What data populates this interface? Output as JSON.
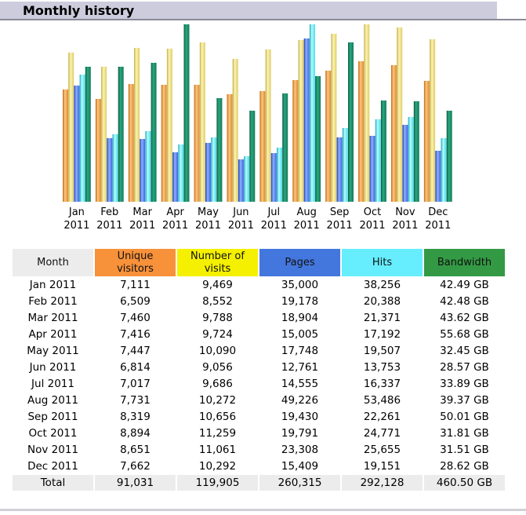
{
  "header": {
    "title": "Monthly history"
  },
  "colors": {
    "unique_visitors": "#f7913a",
    "visits": "#f4f000",
    "pages": "#4477dd",
    "hits": "#66eeff",
    "bandwidth": "#339944",
    "month_header": "#ececec",
    "total_row": "#ececec",
    "titlebar": "#ccccdd"
  },
  "chart_data": {
    "type": "bar",
    "title": "Monthly history",
    "categories": [
      "Jan 2011",
      "Feb 2011",
      "Mar 2011",
      "Apr 2011",
      "May 2011",
      "Jun 2011",
      "Jul 2011",
      "Aug 2011",
      "Sep 2011",
      "Oct 2011",
      "Nov 2011",
      "Dec 2011"
    ],
    "category_lines": [
      [
        "Jan",
        "2011"
      ],
      [
        "Feb",
        "2011"
      ],
      [
        "Mar",
        "2011"
      ],
      [
        "Apr",
        "2011"
      ],
      [
        "May",
        "2011"
      ],
      [
        "Jun",
        "2011"
      ],
      [
        "Jul",
        "2011"
      ],
      [
        "Aug",
        "2011"
      ],
      [
        "Sep",
        "2011"
      ],
      [
        "Oct",
        "2011"
      ],
      [
        "Nov",
        "2011"
      ],
      [
        "Dec",
        "2011"
      ]
    ],
    "series": [
      {
        "name": "Unique visitors",
        "values": [
          7111,
          6509,
          7460,
          7416,
          7447,
          6814,
          7017,
          7731,
          8319,
          8894,
          8651,
          7662
        ]
      },
      {
        "name": "Number of visits",
        "values": [
          9469,
          8552,
          9788,
          9724,
          10090,
          9056,
          9686,
          10272,
          10656,
          11259,
          11061,
          10292
        ]
      },
      {
        "name": "Pages",
        "values": [
          35000,
          19178,
          18904,
          15005,
          17748,
          12761,
          14555,
          49226,
          19430,
          19791,
          23308,
          15409
        ]
      },
      {
        "name": "Hits",
        "values": [
          38256,
          20388,
          21371,
          17192,
          19507,
          13753,
          16337,
          53486,
          22261,
          24771,
          25655,
          19151
        ]
      },
      {
        "name": "Bandwidth",
        "unit": "GB",
        "values": [
          42.49,
          42.48,
          43.62,
          55.68,
          32.45,
          28.57,
          33.89,
          39.37,
          50.01,
          31.81,
          31.51,
          28.62
        ]
      }
    ],
    "scaling": "visitors and visits share one scale, pages and hits share one scale, bandwidth has its own scale",
    "xlabel": "",
    "ylabel": "",
    "grid": false,
    "legend": "none"
  },
  "table": {
    "headers": [
      "Month",
      "Unique visitors",
      "Number of visits",
      "Pages",
      "Hits",
      "Bandwidth"
    ],
    "header_lines": [
      [
        "Month"
      ],
      [
        "Unique",
        "visitors"
      ],
      [
        "Number of",
        "visits"
      ],
      [
        "Pages"
      ],
      [
        "Hits"
      ],
      [
        "Bandwidth"
      ]
    ],
    "rows": [
      [
        "Jan 2011",
        "7,111",
        "9,469",
        "35,000",
        "38,256",
        "42.49 GB"
      ],
      [
        "Feb 2011",
        "6,509",
        "8,552",
        "19,178",
        "20,388",
        "42.48 GB"
      ],
      [
        "Mar 2011",
        "7,460",
        "9,788",
        "18,904",
        "21,371",
        "43.62 GB"
      ],
      [
        "Apr 2011",
        "7,416",
        "9,724",
        "15,005",
        "17,192",
        "55.68 GB"
      ],
      [
        "May 2011",
        "7,447",
        "10,090",
        "17,748",
        "19,507",
        "32.45 GB"
      ],
      [
        "Jun 2011",
        "6,814",
        "9,056",
        "12,761",
        "13,753",
        "28.57 GB"
      ],
      [
        "Jul 2011",
        "7,017",
        "9,686",
        "14,555",
        "16,337",
        "33.89 GB"
      ],
      [
        "Aug 2011",
        "7,731",
        "10,272",
        "49,226",
        "53,486",
        "39.37 GB"
      ],
      [
        "Sep 2011",
        "8,319",
        "10,656",
        "19,430",
        "22,261",
        "50.01 GB"
      ],
      [
        "Oct 2011",
        "8,894",
        "11,259",
        "19,791",
        "24,771",
        "31.81 GB"
      ],
      [
        "Nov 2011",
        "8,651",
        "11,061",
        "23,308",
        "25,655",
        "31.51 GB"
      ],
      [
        "Dec 2011",
        "7,662",
        "10,292",
        "15,409",
        "19,151",
        "28.62 GB"
      ]
    ],
    "total": [
      "Total",
      "91,031",
      "119,905",
      "260,315",
      "292,128",
      "460.50 GB"
    ]
  }
}
